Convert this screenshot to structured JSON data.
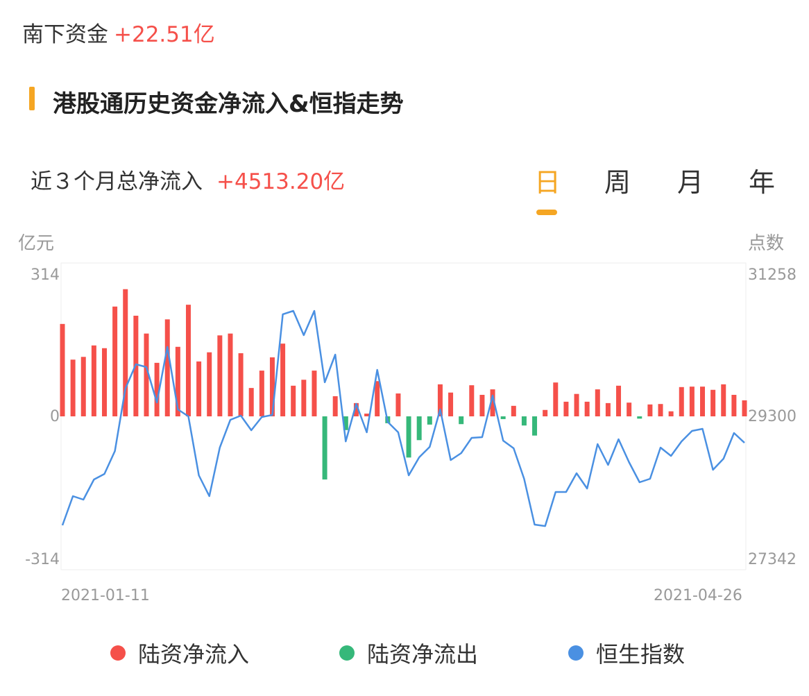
{
  "header": {
    "label": "南下资金",
    "value": "+22.51亿"
  },
  "section_title": "港股通历史资金净流入&恒指走势",
  "summary": {
    "label": "近３个月总净流入",
    "value": "+4513.20亿"
  },
  "tabs": [
    {
      "label": "日",
      "active": true
    },
    {
      "label": "周",
      "active": false
    },
    {
      "label": "月",
      "active": false
    },
    {
      "label": "年",
      "active": false
    }
  ],
  "colors": {
    "inflow": "#f5504a",
    "outflow": "#36b87a",
    "index": "#4a90e2",
    "accent": "#f5a623"
  },
  "chart_data": {
    "type": "bar+line",
    "left_axis": {
      "label": "亿元",
      "ticks": [
        "314",
        "0",
        "-314"
      ],
      "range": [
        -314,
        314
      ]
    },
    "right_axis": {
      "label": "点数",
      "ticks": [
        "31258",
        "29300",
        "27342"
      ],
      "range": [
        27342,
        31258
      ]
    },
    "x_ticks": [
      "2021-01-11",
      "2021-04-26"
    ],
    "legend": [
      "陆资净流入",
      "陆资净流出",
      "恒生指数"
    ],
    "legend_position": "bottom",
    "flow_values": [
      202,
      124,
      130,
      155,
      149,
      240,
      278,
      220,
      181,
      117,
      212,
      152,
      244,
      120,
      140,
      177,
      181,
      138,
      62,
      100,
      129,
      159,
      67,
      80,
      100,
      -138,
      44,
      -30,
      29,
      6,
      77,
      -15,
      50,
      -90,
      -52,
      -18,
      70,
      52,
      -17,
      68,
      47,
      59,
      -6,
      23,
      -20,
      -42,
      14,
      74,
      32,
      49,
      32,
      59,
      29,
      67,
      30,
      -5,
      26,
      27,
      11,
      64,
      65,
      65,
      58,
      70,
      47,
      35
    ],
    "index_values": [
      27815,
      28212,
      28165,
      28439,
      28515,
      28827,
      29678,
      30010,
      29972,
      29489,
      30246,
      29395,
      29300,
      28496,
      28212,
      28874,
      29253,
      29309,
      29111,
      29291,
      29319,
      30691,
      30738,
      30407,
      30738,
      29764,
      30142,
      28959,
      29470,
      29082,
      29934,
      29224,
      29082,
      28496,
      28742,
      28884,
      29395,
      28704,
      28799,
      29007,
      29016,
      29584,
      28969,
      28865,
      28449,
      27824,
      27805,
      28269,
      28269,
      28524,
      28316,
      28922,
      28638,
      28988,
      28676,
      28401,
      28449,
      28874,
      28761,
      28959,
      29101,
      29130,
      28572,
      28723,
      29073,
      28940
    ]
  }
}
